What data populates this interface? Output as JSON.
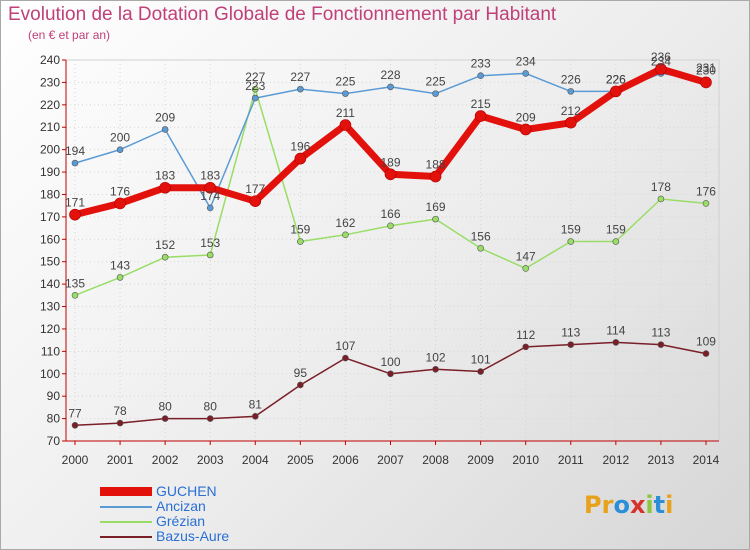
{
  "header": {
    "title": "Evolution de la Dotation Globale de Fonctionnement par Habitant",
    "subtitle": "(en € et par an)"
  },
  "logo": {
    "text": "Proxiti",
    "letters": [
      "P",
      "r",
      "o",
      "x",
      "i",
      "t",
      "i"
    ],
    "colors": [
      "#e8a11a",
      "#e8a11a",
      "#2a8fd6",
      "#d8322c",
      "#8cc63f",
      "#2a8fd6",
      "#e8a11a"
    ]
  },
  "chart_data": {
    "type": "line",
    "title": "Evolution de la Dotation Globale de Fonctionnement par Habitant",
    "subtitle": "(en € et par an)",
    "xlabel": "",
    "ylabel": "",
    "categories": [
      "2000",
      "2001",
      "2002",
      "2003",
      "2004",
      "2005",
      "2006",
      "2007",
      "2008",
      "2009",
      "2010",
      "2011",
      "2012",
      "2013",
      "2014"
    ],
    "ylim": [
      70,
      240
    ],
    "yticks": [
      70,
      80,
      90,
      100,
      110,
      120,
      130,
      140,
      150,
      160,
      170,
      180,
      190,
      200,
      210,
      220,
      230,
      240
    ],
    "grid": true,
    "legend_position": "bottom-left",
    "series": [
      {
        "name": "GUCHEN",
        "color": "#e3110c",
        "emphasis": true,
        "values": [
          171,
          176,
          183,
          183,
          177,
          196,
          211,
          189,
          188,
          215,
          209,
          212,
          226,
          236,
          230
        ]
      },
      {
        "name": "Ancizan",
        "color": "#5b9bd5",
        "emphasis": false,
        "values": [
          194,
          200,
          209,
          174,
          223,
          227,
          225,
          228,
          225,
          233,
          234,
          226,
          226,
          234,
          231
        ]
      },
      {
        "name": "Grézian",
        "color": "#99dd66",
        "emphasis": false,
        "values": [
          135,
          143,
          152,
          153,
          227,
          159,
          162,
          166,
          169,
          156,
          147,
          159,
          159,
          178,
          176
        ]
      },
      {
        "name": "Bazus-Aure",
        "color": "#7a1e28",
        "emphasis": false,
        "values": [
          77,
          78,
          80,
          80,
          81,
          95,
          107,
          100,
          102,
          101,
          112,
          113,
          114,
          113,
          109
        ]
      }
    ]
  }
}
